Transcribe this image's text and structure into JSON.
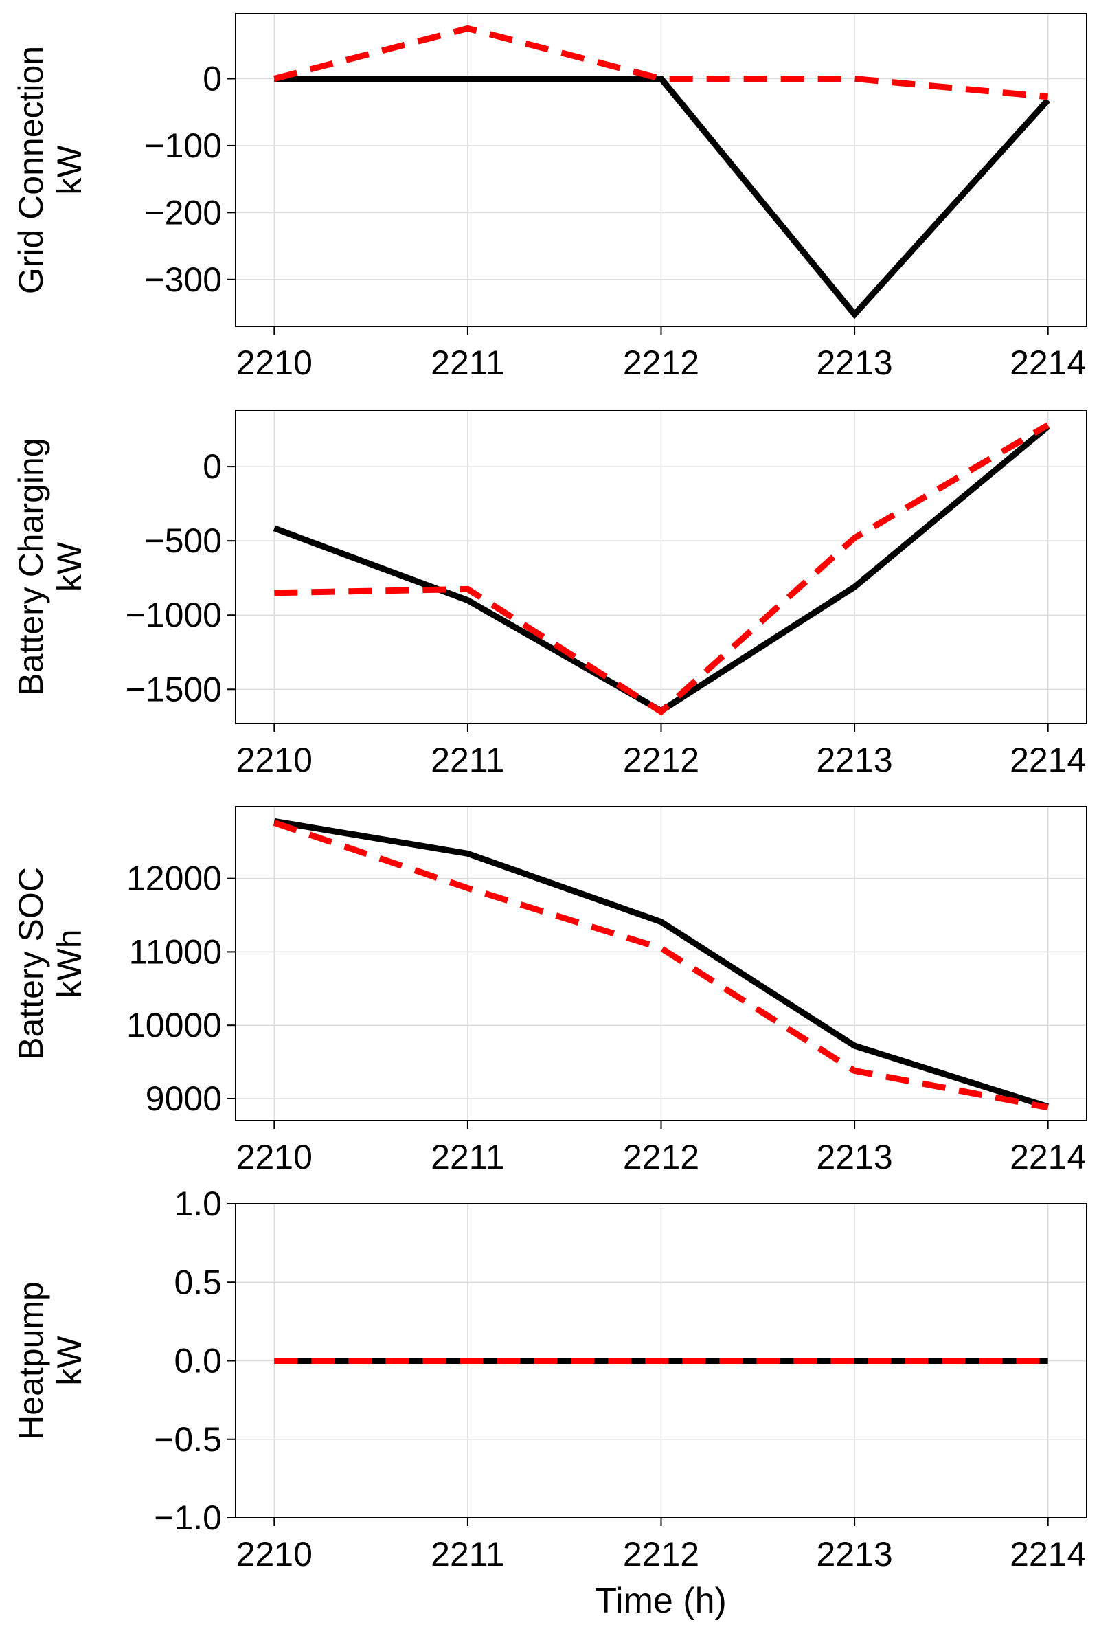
{
  "figure": {
    "xlabel": "Time (h)",
    "styles": {
      "series_a_color": "#000000",
      "series_b_color": "#ff0000"
    }
  },
  "chart_data": [
    {
      "type": "line",
      "ylabel": [
        "Grid Connection",
        "kW"
      ],
      "x": [
        2210,
        2211,
        2212,
        2213,
        2214
      ],
      "xlim": [
        2209.8,
        2214.2
      ],
      "ylim": [
        -370,
        97
      ],
      "yticks": [
        0,
        -100,
        -200,
        -300
      ],
      "ytick_labels": [
        "0",
        "−100",
        "−200",
        "−300"
      ],
      "xtick_labels": [
        "2210",
        "2211",
        "2212",
        "2213",
        "2214"
      ],
      "grid": true,
      "series": [
        {
          "style": "solid",
          "color": "#000000",
          "values": [
            0,
            0,
            0,
            -352,
            -32
          ]
        },
        {
          "style": "dashed",
          "color": "#ff0000",
          "values": [
            0,
            75,
            0,
            0,
            -27
          ]
        }
      ]
    },
    {
      "type": "line",
      "ylabel": [
        "Battery Charging",
        "kW"
      ],
      "x": [
        2210,
        2211,
        2212,
        2213,
        2214
      ],
      "xlim": [
        2209.8,
        2214.2
      ],
      "ylim": [
        -1730,
        380
      ],
      "yticks": [
        0,
        -500,
        -1000,
        -1500
      ],
      "ytick_labels": [
        "0",
        "−500",
        "−1000",
        "−1500"
      ],
      "xtick_labels": [
        "2210",
        "2211",
        "2212",
        "2213",
        "2214"
      ],
      "grid": true,
      "series": [
        {
          "style": "solid",
          "color": "#000000",
          "values": [
            -415,
            -900,
            -1645,
            -810,
            270
          ]
        },
        {
          "style": "dashed",
          "color": "#ff0000",
          "values": [
            -850,
            -825,
            -1650,
            -480,
            280
          ]
        }
      ]
    },
    {
      "type": "line",
      "ylabel": [
        "Battery SOC",
        "kWh"
      ],
      "x": [
        2210,
        2211,
        2212,
        2213,
        2214
      ],
      "xlim": [
        2209.8,
        2214.2
      ],
      "ylim": [
        8700,
        12980
      ],
      "yticks": [
        9000,
        10000,
        11000,
        12000
      ],
      "ytick_labels": [
        "9000",
        "10000",
        "11000",
        "12000"
      ],
      "xtick_labels": [
        "2210",
        "2211",
        "2212",
        "2213",
        "2214"
      ],
      "grid": true,
      "series": [
        {
          "style": "solid",
          "color": "#000000",
          "values": [
            12780,
            12340,
            11410,
            9720,
            8890
          ]
        },
        {
          "style": "dashed",
          "color": "#ff0000",
          "values": [
            12760,
            11870,
            11050,
            9380,
            8880
          ]
        }
      ]
    },
    {
      "type": "line",
      "ylabel": [
        "Heatpump",
        "kW"
      ],
      "x": [
        2210,
        2211,
        2212,
        2213,
        2214
      ],
      "xlim": [
        2209.8,
        2214.2
      ],
      "ylim": [
        -1.0,
        1.0
      ],
      "yticks": [
        1.0,
        0.5,
        0.0,
        -0.5,
        -1.0
      ],
      "ytick_labels": [
        "1.0",
        "0.5",
        "0.0",
        "−0.5",
        "−1.0"
      ],
      "xtick_labels": [
        "2210",
        "2211",
        "2212",
        "2213",
        "2214"
      ],
      "grid": true,
      "series": [
        {
          "style": "solid",
          "color": "#000000",
          "values": [
            0,
            0,
            0,
            0,
            0
          ]
        },
        {
          "style": "dashed",
          "color": "#ff0000",
          "values": [
            0,
            0,
            0,
            0,
            0
          ]
        }
      ]
    }
  ]
}
